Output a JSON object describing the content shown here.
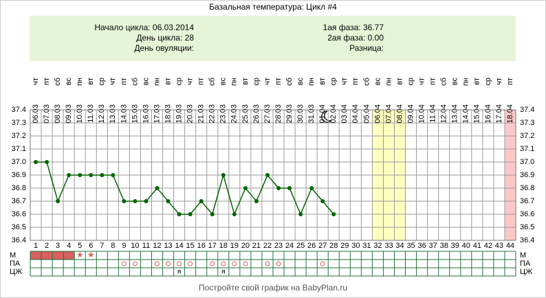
{
  "chart_data": {
    "type": "line",
    "title": "Базальная температура: Цикл #4",
    "info_left": [
      "Начало цикла: 06.03.2014",
      "День цикла: 28",
      "День овуляции:"
    ],
    "info_right": [
      "1ая фаза: 36.77",
      "2ая фаза: 0.00",
      "Разница:"
    ],
    "x": [
      1,
      2,
      3,
      4,
      5,
      6,
      7,
      8,
      9,
      10,
      11,
      12,
      13,
      14,
      15,
      16,
      17,
      18,
      19,
      20,
      21,
      22,
      23,
      24,
      25,
      26,
      27,
      28,
      29,
      30,
      31,
      32,
      33,
      34,
      35,
      36,
      37,
      38,
      39,
      40,
      41,
      42,
      43,
      44
    ],
    "dates": [
      "06.03",
      "07.03",
      "08.03",
      "09.03",
      "10.03",
      "11.03",
      "12.03",
      "13.03",
      "14.03",
      "15.03",
      "16.03",
      "17.03",
      "18.03",
      "19.03",
      "20.03",
      "21.03",
      "22.03",
      "23.03",
      "24.03",
      "25.03",
      "26.03",
      "27.03",
      "28.03",
      "29.03",
      "30.03",
      "31.03",
      "01.04",
      "02.04",
      "03.04",
      "04.04",
      "05.04",
      "06.04",
      "07.04",
      "08.04",
      "09.04",
      "10.04",
      "11.04",
      "12.04",
      "13.04",
      "14.04",
      "15.04",
      "16.04",
      "17.04",
      "18.04"
    ],
    "weekdays": [
      "чт",
      "пт",
      "сб",
      "вс",
      "пн",
      "вт",
      "ср",
      "чт",
      "пт",
      "сб",
      "вс",
      "пн",
      "вт",
      "ср",
      "чт",
      "пт",
      "сб",
      "вс",
      "пн",
      "вт",
      "ср",
      "чт",
      "пт",
      "сб",
      "вс",
      "пн",
      "вт",
      "ср",
      "чт",
      "пт",
      "сб",
      "вс",
      "пн",
      "вт",
      "ср",
      "чт",
      "пт",
      "сб",
      "вс",
      "пн",
      "вт",
      "ср",
      "чт",
      "пт"
    ],
    "series": [
      {
        "name": "Температура",
        "color": "#006400",
        "values": [
          37.0,
          37.0,
          36.7,
          36.9,
          36.9,
          36.9,
          36.9,
          36.9,
          36.7,
          36.7,
          36.7,
          36.8,
          36.7,
          36.6,
          36.6,
          36.7,
          36.6,
          36.9,
          36.6,
          36.8,
          36.7,
          36.9,
          36.8,
          36.8,
          36.6,
          36.8,
          36.7,
          36.6,
          null,
          null,
          null,
          null,
          null,
          null,
          null,
          null,
          null,
          null,
          null,
          null,
          null,
          null,
          null,
          null
        ]
      }
    ],
    "ylim": [
      36.4,
      37.4
    ],
    "yticks": [
      36.4,
      36.5,
      36.6,
      36.7,
      36.8,
      36.9,
      {
        "value": 37,
        "label": "37.0"
      },
      37.1,
      37.2,
      37.3,
      37.4
    ],
    "grid": true,
    "highlights": [
      {
        "from": 32,
        "to": 34,
        "color": "#ffffc0"
      },
      {
        "from": 44,
        "to": 44,
        "color": "#ffc8c8"
      }
    ],
    "rows": [
      {
        "label": "М",
        "period_days": [
          1,
          2,
          3,
          4
        ],
        "period_color": "#d9605f",
        "star_days": [
          5,
          6
        ]
      },
      {
        "label": "ПА",
        "circle_days": [
          9,
          10,
          12,
          13,
          14,
          15,
          17,
          18,
          19,
          20,
          22,
          23,
          27
        ]
      },
      {
        "label": "ЦЖ",
        "text_marks": [
          {
            "day": 14,
            "text": "я"
          },
          {
            "day": 18,
            "text": "я"
          }
        ]
      }
    ],
    "footer": "Постройте свой график на BabyPlan.ru"
  }
}
